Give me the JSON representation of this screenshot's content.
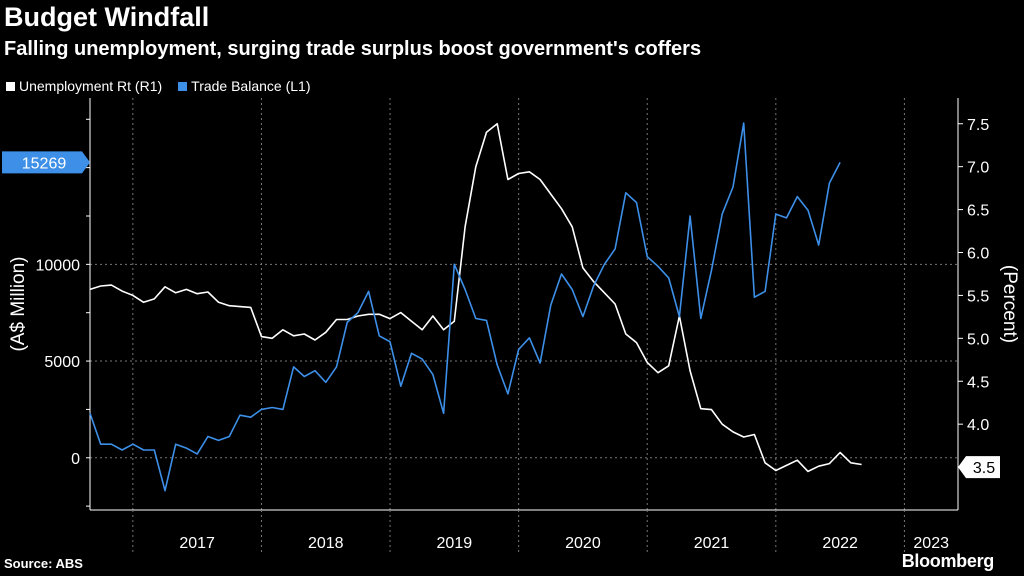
{
  "title": "Budget Windfall",
  "subtitle": "Falling unemployment, surging trade surplus boost government's coffers",
  "source": "Source: ABS",
  "brand": "Bloomberg",
  "colors": {
    "unemployment": "#ffffff",
    "trade": "#3d8fe8",
    "grid": "#777777",
    "background": "#000000"
  },
  "chart_data": {
    "type": "line",
    "title": "Budget Windfall",
    "legend": [
      "Unemployment Rt (R1)",
      "Trade Balance (L1)"
    ],
    "x_categories": [
      "2017",
      "2018",
      "2019",
      "2020",
      "2021",
      "2022",
      "2023"
    ],
    "x_start": 2016.6667,
    "x_end": 2023.4167,
    "left_axis": {
      "label": "(A$ Million)",
      "range": [
        -2700,
        18600
      ],
      "ticks": [
        0,
        5000,
        10000
      ],
      "last_value_label": "15269",
      "last_value": 15269
    },
    "right_axis": {
      "label": "(Percent)",
      "range": [
        3.0,
        7.8
      ],
      "ticks": [
        4.0,
        4.5,
        5.0,
        5.5,
        6.0,
        6.5,
        7.0,
        7.5
      ],
      "tick_labels": [
        "4.0",
        "4.5",
        "5.0",
        "5.5",
        "6.0",
        "6.5",
        "7.0",
        "7.5"
      ],
      "last_value_label": "3.5",
      "last_value": 3.5
    },
    "series": [
      {
        "name": "Unemployment Rt (R1)",
        "axis": "right",
        "start": 2016.6667,
        "step_months": 1,
        "values": [
          5.57,
          5.61,
          5.62,
          5.55,
          5.5,
          5.42,
          5.46,
          5.6,
          5.53,
          5.57,
          5.52,
          5.54,
          5.42,
          5.38,
          5.37,
          5.36,
          5.02,
          5.0,
          5.1,
          5.03,
          5.05,
          4.98,
          5.07,
          5.22,
          5.22,
          5.26,
          5.28,
          5.28,
          5.23,
          5.3,
          5.2,
          5.1,
          5.26,
          5.1,
          5.2,
          6.3,
          7.0,
          7.4,
          7.5,
          6.85,
          6.92,
          6.94,
          6.85,
          6.68,
          6.51,
          6.3,
          5.82,
          5.66,
          5.53,
          5.4,
          5.05,
          4.95,
          4.72,
          4.6,
          4.68,
          5.26,
          4.62,
          4.18,
          4.17,
          4.0,
          3.91,
          3.85,
          3.88,
          3.55,
          3.46,
          3.52,
          3.58,
          3.45,
          3.51,
          3.54,
          3.67,
          3.55,
          3.53
        ]
      },
      {
        "name": "Trade Balance (L1)",
        "axis": "left",
        "start": 2016.6667,
        "step_months": 1,
        "values": [
          2300,
          700,
          700,
          400,
          700,
          400,
          400,
          -1700,
          700,
          500,
          200,
          1100,
          900,
          1100,
          2200,
          2100,
          2500,
          2600,
          2500,
          4700,
          4200,
          4500,
          3900,
          4700,
          7000,
          7500,
          8600,
          6300,
          6000,
          3700,
          5400,
          5100,
          4300,
          2300,
          10000,
          8700,
          7200,
          7100,
          4800,
          3300,
          5600,
          6200,
          4900,
          7900,
          9500,
          8700,
          7300,
          8900,
          10000,
          10800,
          13700,
          13200,
          10400,
          9900,
          9300,
          7300,
          12500,
          7200,
          9700,
          12600,
          14000,
          17300,
          8300,
          8600,
          12600,
          12400,
          13500,
          12800,
          11000,
          14200,
          15269
        ]
      }
    ]
  }
}
